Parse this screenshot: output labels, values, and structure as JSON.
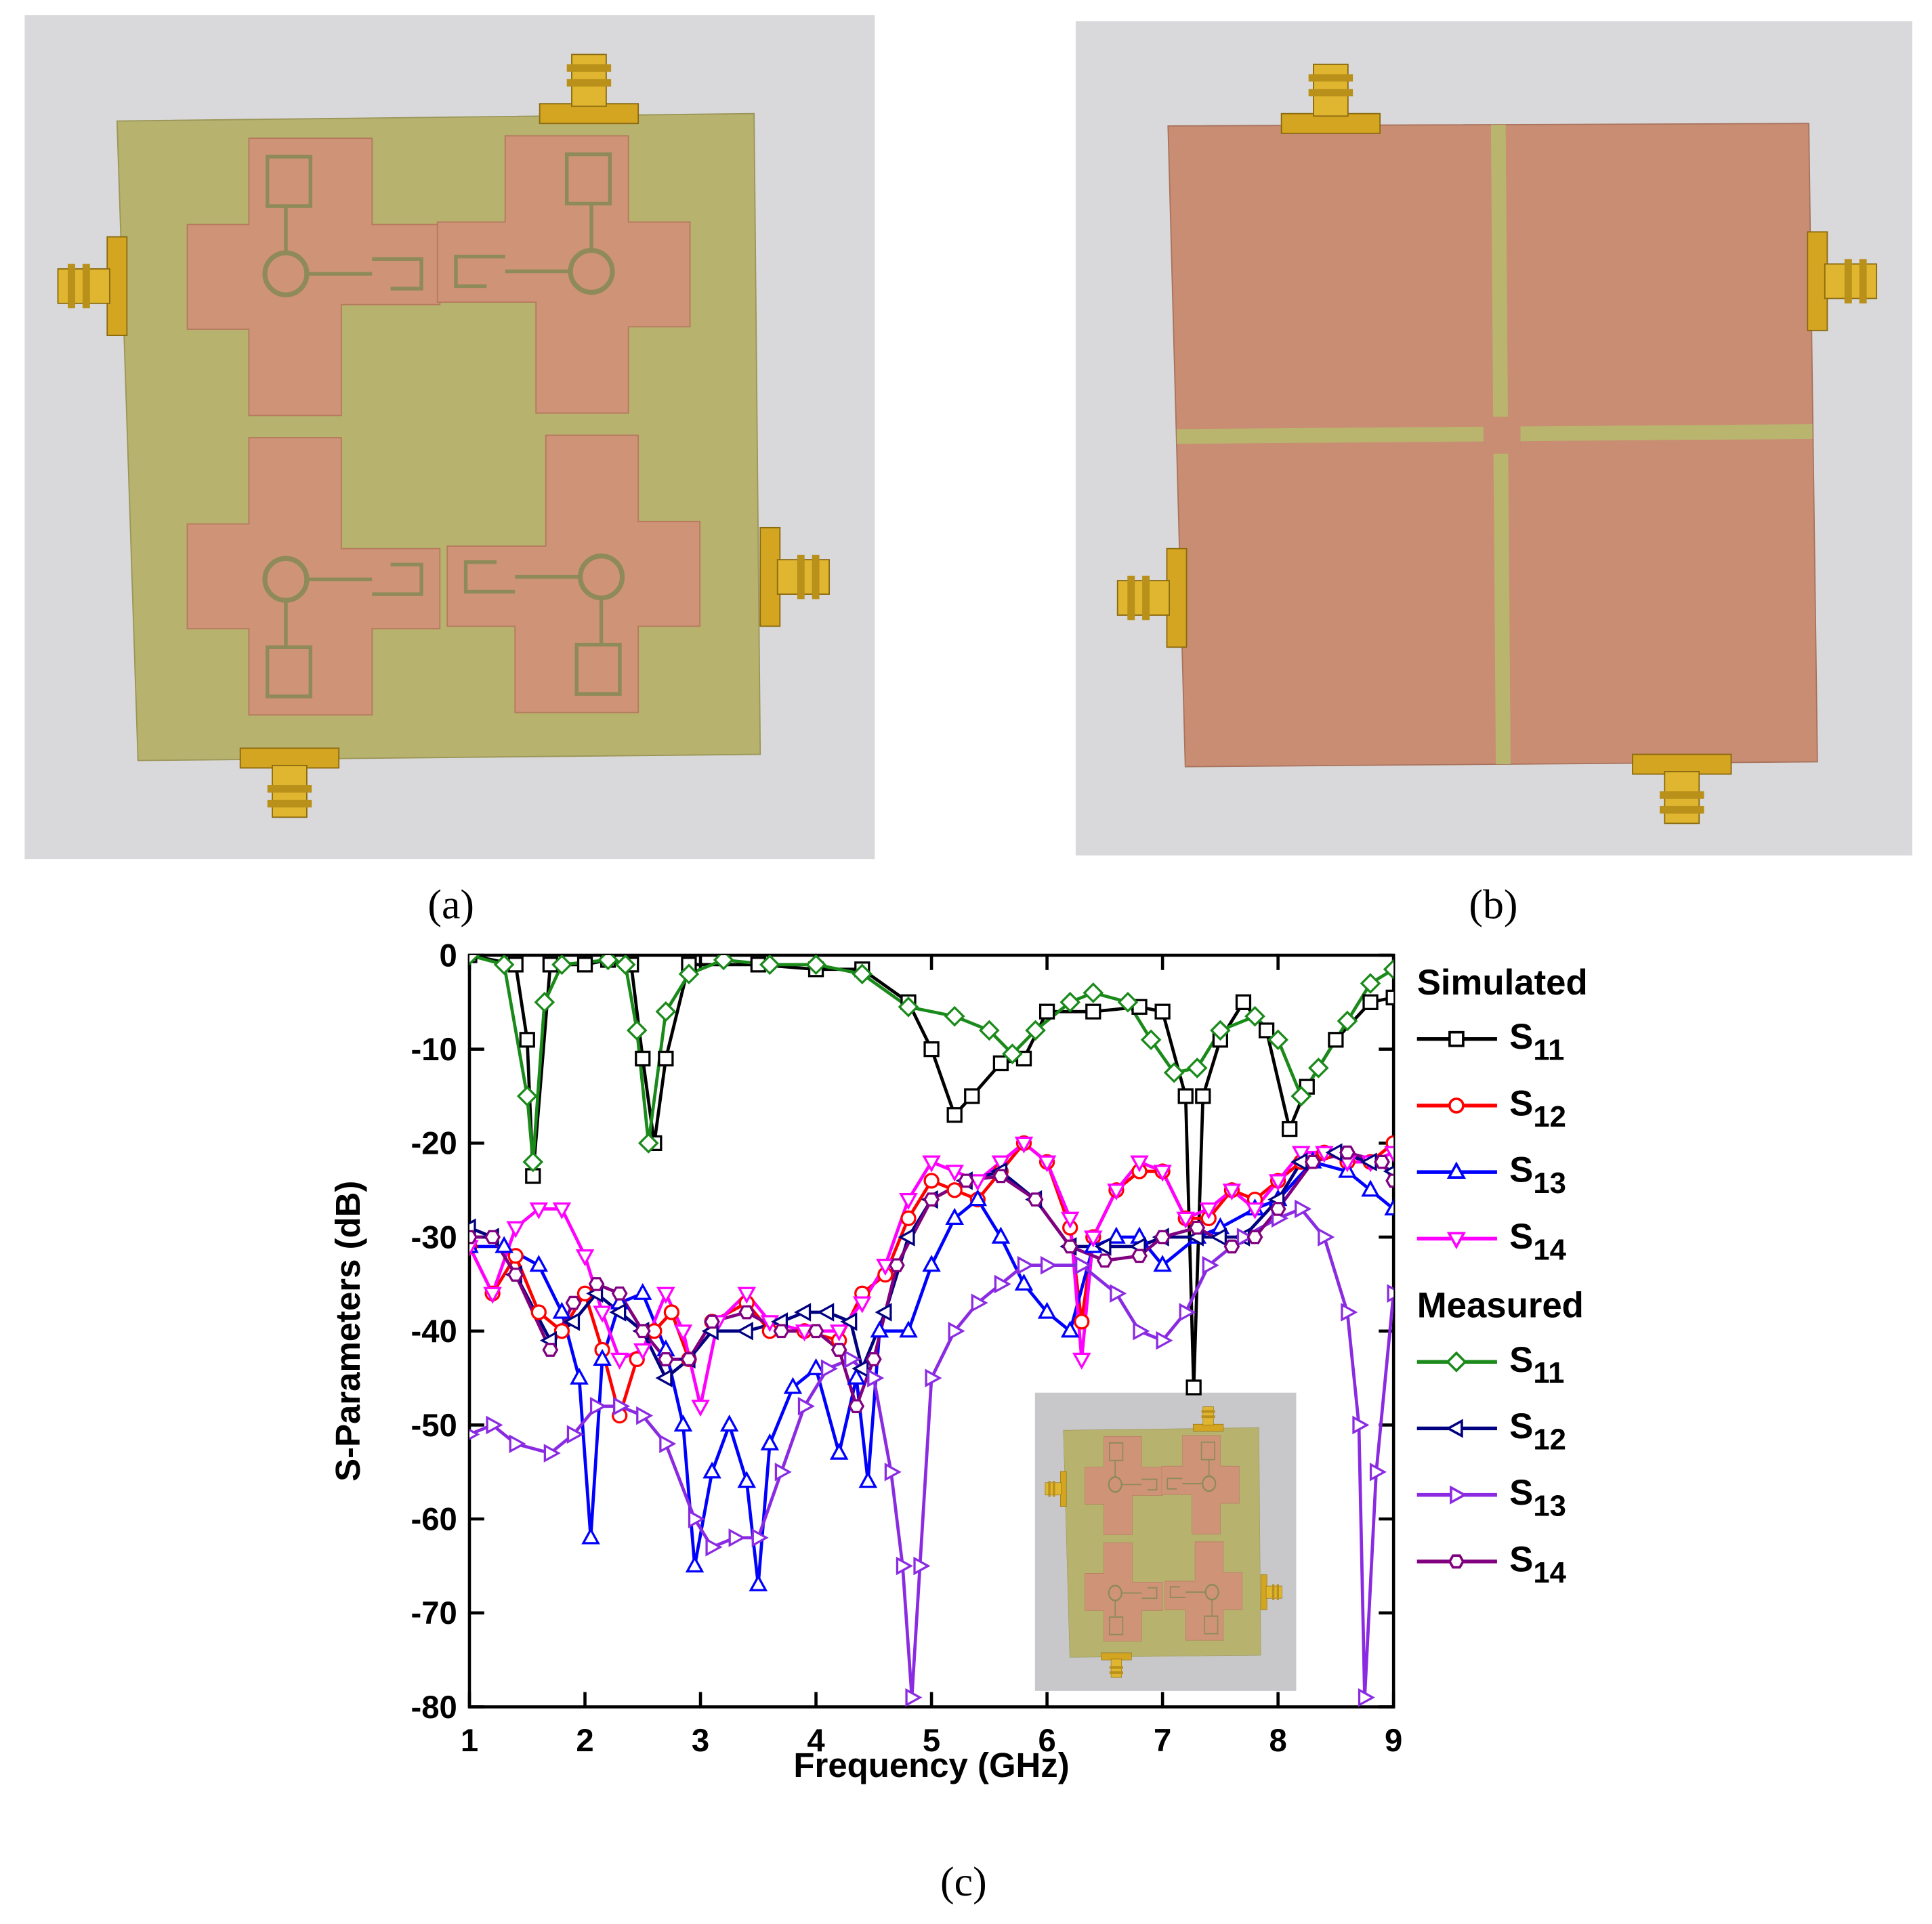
{
  "panel_labels": [
    "(a)",
    "(b)",
    "(c)"
  ],
  "chart_data": {
    "type": "line",
    "xlabel": "Frequency (GHz)",
    "ylabel": "S-Parameters (dB)",
    "xlim": [
      1,
      9
    ],
    "xticks": [
      1,
      2,
      3,
      4,
      5,
      6,
      7,
      8,
      9
    ],
    "ylim": [
      -80,
      0
    ],
    "yticks": [
      0,
      -10,
      -20,
      -30,
      -40,
      -50,
      -60,
      -70,
      -80
    ],
    "series": [
      {
        "name": "S11",
        "group": "Simulated",
        "color": "#000000",
        "marker": "square",
        "x": [
          1.0,
          1.4,
          1.5,
          1.55,
          1.7,
          2.0,
          2.2,
          2.4,
          2.5,
          2.6,
          2.7,
          2.9,
          3.5,
          4.0,
          4.4,
          4.8,
          5.0,
          5.2,
          5.35,
          5.6,
          5.8,
          6.0,
          6.4,
          6.8,
          7.0,
          7.2,
          7.27,
          7.35,
          7.5,
          7.7,
          7.9,
          8.1,
          8.25,
          8.5,
          8.8,
          9.0
        ],
        "values": [
          0,
          -1,
          -9,
          -23.5,
          -1,
          -1,
          -0.5,
          -1,
          -11,
          -20,
          -11,
          -1,
          -1,
          -1.5,
          -1.5,
          -5,
          -10,
          -17,
          -15,
          -11.5,
          -11,
          -6,
          -6,
          -5.5,
          -6,
          -15,
          -46,
          -15,
          -9,
          -5,
          -8,
          -18.5,
          -14,
          -9,
          -5,
          -4.5
        ]
      },
      {
        "name": "S12",
        "group": "Simulated",
        "color": "#ff0000",
        "marker": "circle",
        "x": [
          1.0,
          1.2,
          1.4,
          1.6,
          1.8,
          2.0,
          2.15,
          2.3,
          2.45,
          2.6,
          2.75,
          2.9,
          3.1,
          3.4,
          3.6,
          3.9,
          4.2,
          4.4,
          4.6,
          4.8,
          5.0,
          5.2,
          5.4,
          5.6,
          5.8,
          6.0,
          6.2,
          6.3,
          6.4,
          6.6,
          6.8,
          7.0,
          7.2,
          7.4,
          7.6,
          7.8,
          8.0,
          8.2,
          8.4,
          8.6,
          8.8,
          9.0
        ],
        "values": [
          -31,
          -36,
          -32,
          -38,
          -40,
          -36,
          -42,
          -49,
          -43,
          -40,
          -38,
          -43,
          -39,
          -37,
          -40,
          -40,
          -41,
          -36,
          -34,
          -28,
          -24,
          -25,
          -26,
          -23,
          -20,
          -22,
          -29,
          -39,
          -30,
          -25,
          -23,
          -23,
          -28,
          -28,
          -25,
          -26,
          -24,
          -22,
          -21,
          -22,
          -22,
          -20
        ]
      },
      {
        "name": "S13",
        "group": "Simulated",
        "color": "#0000ff",
        "marker": "triangle-up",
        "x": [
          1.0,
          1.3,
          1.6,
          1.8,
          1.95,
          2.05,
          2.15,
          2.3,
          2.5,
          2.7,
          2.85,
          2.95,
          3.1,
          3.25,
          3.4,
          3.5,
          3.6,
          3.8,
          4.0,
          4.2,
          4.35,
          4.45,
          4.55,
          4.8,
          5.0,
          5.2,
          5.4,
          5.6,
          5.8,
          6.0,
          6.2,
          6.4,
          6.6,
          6.8,
          7.0,
          7.3,
          7.5,
          7.8,
          8.0,
          8.3,
          8.6,
          8.8,
          9.0
        ],
        "values": [
          -31,
          -31,
          -33,
          -38,
          -45,
          -62,
          -43,
          -37,
          -36,
          -42,
          -50,
          -65,
          -55,
          -50,
          -56,
          -67,
          -52,
          -46,
          -44,
          -53,
          -45,
          -56,
          -40,
          -40,
          -33,
          -28,
          -26,
          -30,
          -35,
          -38,
          -40,
          -31,
          -30,
          -30,
          -33,
          -30,
          -29,
          -27,
          -26,
          -22,
          -23,
          -25,
          -27
        ]
      },
      {
        "name": "S14",
        "group": "Simulated",
        "color": "#ff00ff",
        "marker": "triangle-down",
        "x": [
          1.0,
          1.2,
          1.4,
          1.6,
          1.8,
          2.0,
          2.15,
          2.3,
          2.5,
          2.7,
          2.85,
          3.0,
          3.15,
          3.4,
          3.6,
          3.9,
          4.2,
          4.4,
          4.6,
          4.8,
          5.0,
          5.2,
          5.4,
          5.6,
          5.8,
          6.0,
          6.2,
          6.3,
          6.4,
          6.6,
          6.8,
          7.0,
          7.2,
          7.4,
          7.6,
          7.8,
          8.0,
          8.2,
          8.4,
          8.6,
          8.8,
          9.0
        ],
        "values": [
          -31,
          -36,
          -29,
          -27,
          -27,
          -32,
          -38,
          -43,
          -42,
          -36,
          -40,
          -48,
          -39,
          -36,
          -39,
          -40,
          -40,
          -37,
          -33,
          -26,
          -22,
          -23,
          -24,
          -22,
          -20,
          -22,
          -28,
          -43,
          -30,
          -25,
          -22,
          -23,
          -28,
          -27,
          -25,
          -27,
          -24,
          -21,
          -21,
          -22,
          -22,
          -21
        ]
      },
      {
        "name": "S11",
        "group": "Measured",
        "color": "#1a8a1a",
        "marker": "diamond",
        "x": [
          1.0,
          1.3,
          1.5,
          1.55,
          1.65,
          1.8,
          2.2,
          2.35,
          2.45,
          2.55,
          2.7,
          2.9,
          3.2,
          3.6,
          4.0,
          4.4,
          4.8,
          5.2,
          5.5,
          5.7,
          5.9,
          6.2,
          6.4,
          6.7,
          6.9,
          7.1,
          7.3,
          7.5,
          7.8,
          8.0,
          8.2,
          8.35,
          8.6,
          8.8,
          9.0
        ],
        "values": [
          0,
          -1,
          -15,
          -22,
          -5,
          -1,
          -0.5,
          -1,
          -8,
          -20,
          -6,
          -2,
          -0.5,
          -1,
          -1,
          -2,
          -5.5,
          -6.5,
          -8,
          -10.5,
          -8,
          -5,
          -4,
          -5,
          -9,
          -12.5,
          -12,
          -8,
          -6.5,
          -9,
          -15,
          -12,
          -7,
          -3,
          -1.5
        ]
      },
      {
        "name": "S12",
        "group": "Measured",
        "color": "#000080",
        "marker": "triangle-left",
        "x": [
          1.0,
          1.2,
          1.4,
          1.7,
          1.9,
          2.1,
          2.3,
          2.5,
          2.7,
          2.9,
          3.1,
          3.4,
          3.7,
          3.9,
          4.1,
          4.3,
          4.4,
          4.6,
          4.8,
          5.0,
          5.3,
          5.6,
          5.9,
          6.2,
          6.5,
          6.8,
          7.0,
          7.3,
          7.5,
          7.7,
          8.0,
          8.2,
          8.5,
          8.8,
          9.0
        ],
        "values": [
          -29,
          -30,
          -34,
          -41,
          -39,
          -36,
          -38,
          -40,
          -45,
          -43,
          -40,
          -40,
          -39,
          -38,
          -38,
          -39,
          -44,
          -38,
          -30,
          -26,
          -24,
          -23,
          -26,
          -31,
          -31,
          -31,
          -30,
          -30,
          -30,
          -30,
          -26,
          -22,
          -21,
          -22,
          -23
        ]
      },
      {
        "name": "S13",
        "group": "Measured",
        "color": "#8a2be2",
        "marker": "triangle-right",
        "x": [
          1.0,
          1.2,
          1.4,
          1.7,
          1.9,
          2.1,
          2.3,
          2.5,
          2.7,
          2.95,
          3.1,
          3.3,
          3.5,
          3.7,
          3.9,
          4.1,
          4.3,
          4.5,
          4.65,
          4.75,
          4.83,
          4.9,
          5.0,
          5.2,
          5.4,
          5.6,
          5.8,
          6.0,
          6.3,
          6.6,
          6.8,
          7.0,
          7.2,
          7.4,
          7.7,
          8.0,
          8.2,
          8.4,
          8.6,
          8.7,
          8.75,
          8.85,
          9.0
        ],
        "values": [
          -51,
          -50,
          -52,
          -53,
          -51,
          -48,
          -48,
          -49,
          -52,
          -60,
          -63,
          -62,
          -62,
          -55,
          -48,
          -44,
          -43,
          -45,
          -55,
          -65,
          -79,
          -65,
          -45,
          -40,
          -37,
          -35,
          -33,
          -33,
          -33,
          -36,
          -40,
          -41,
          -38,
          -33,
          -30,
          -28,
          -27,
          -30,
          -38,
          -50,
          -79,
          -55,
          -36
        ]
      },
      {
        "name": "S14",
        "group": "Measured",
        "color": "#800080",
        "marker": "hexagon",
        "x": [
          1.0,
          1.2,
          1.4,
          1.7,
          1.9,
          2.1,
          2.3,
          2.5,
          2.7,
          2.9,
          3.1,
          3.4,
          3.7,
          4.0,
          4.2,
          4.35,
          4.5,
          4.7,
          5.0,
          5.3,
          5.6,
          5.9,
          6.2,
          6.5,
          6.8,
          7.0,
          7.3,
          7.6,
          7.8,
          8.0,
          8.3,
          8.6,
          8.9,
          9.0
        ],
        "values": [
          -30,
          -30,
          -34,
          -42,
          -37,
          -35,
          -36,
          -40,
          -43,
          -43,
          -39,
          -38,
          -40,
          -40,
          -42,
          -48,
          -43,
          -33,
          -26,
          -24,
          -23.5,
          -26,
          -31,
          -32.5,
          -32,
          -30,
          -29,
          -31,
          -30,
          -27,
          -22,
          -21,
          -22,
          -24
        ]
      }
    ]
  }
}
